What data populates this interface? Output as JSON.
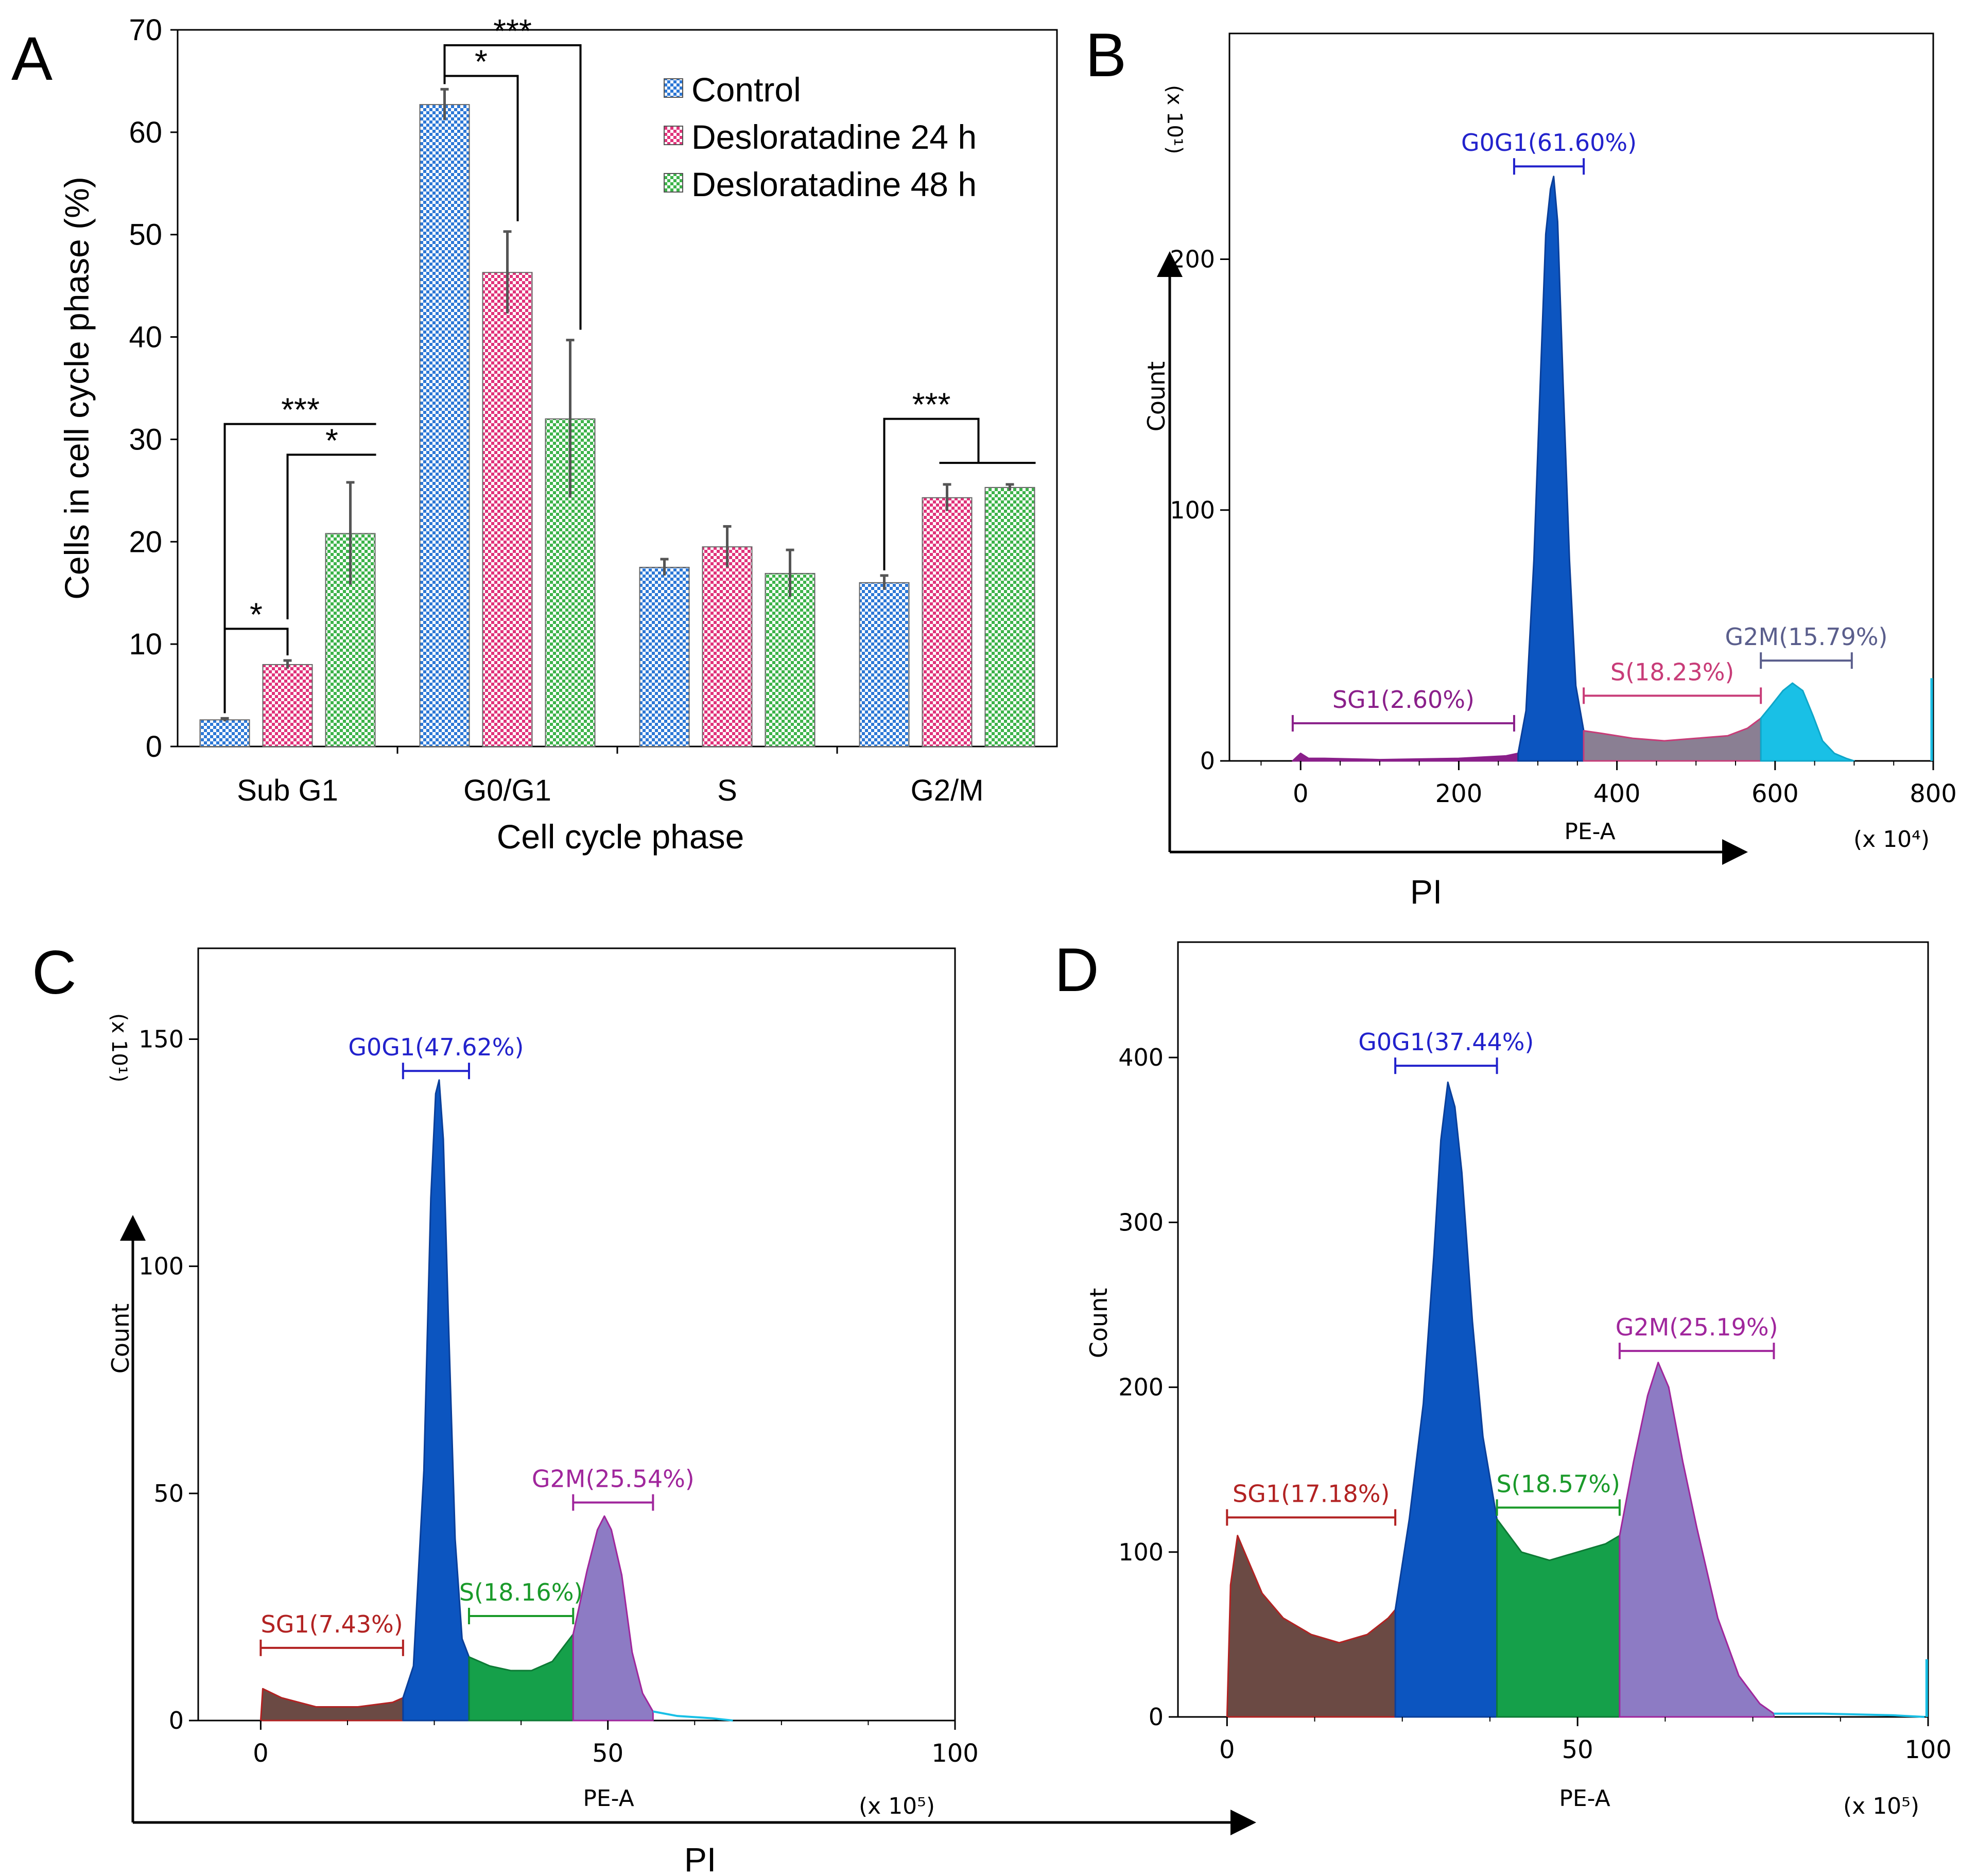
{
  "colors": {
    "control": "#2d78d6",
    "desl24": "#e0337a",
    "desl48": "#3db34a",
    "g0g1_fill": "#0c55c0",
    "sub_fill": "#6b4a44",
    "s_fill_b": "#8a7f93",
    "s_fill_green": "#15a04a",
    "g2m_fill": "#8d7bc4",
    "cyan": "#19c0e6",
    "label_blue": "#2222cc",
    "label_purple": "#8a1f8a",
    "label_pink": "#c83c78",
    "label_slate": "#5a5e8c",
    "label_red": "#b22222",
    "label_green": "#1a9a2a",
    "label_magenta": "#a0269c"
  },
  "chart_data": [
    {
      "id": "A",
      "type": "bar",
      "panel_label": "A",
      "categories": [
        "Sub G1",
        "G0/G1",
        "S",
        "G2/M"
      ],
      "series": [
        {
          "name": "Control",
          "values": [
            2.6,
            62.7,
            17.5,
            16.0
          ],
          "errors": [
            0.15,
            1.5,
            0.8,
            0.7
          ]
        },
        {
          "name": "Desloratadine 24 h",
          "values": [
            8.0,
            46.3,
            19.5,
            24.3
          ],
          "errors": [
            0.4,
            4.0,
            2.0,
            1.3
          ]
        },
        {
          "name": "Desloratadine 48 h",
          "values": [
            20.8,
            32.0,
            16.9,
            25.3
          ],
          "errors": [
            5.0,
            7.7,
            2.3,
            0.3
          ]
        }
      ],
      "xlabel": "Cell cycle phase",
      "ylabel": "Cells in cell cycle phase (%)",
      "ylim": [
        0,
        70
      ],
      "yticks": [
        0,
        10,
        20,
        30,
        40,
        50,
        60,
        70
      ],
      "legend": "top-right",
      "significance": [
        {
          "label": "*",
          "from": "Sub G1 / Control",
          "to": "Sub G1 / Desloratadine 24 h"
        },
        {
          "label": "***",
          "from": "Sub G1 / Control",
          "to": "Sub G1 / Desloratadine 48 h"
        },
        {
          "label": "*",
          "from": "Sub G1 / Desloratadine 24 h",
          "to": "Sub G1 / Desloratadine 48 h"
        },
        {
          "label": "*",
          "from": "G0/G1 / Control",
          "to": "G0/G1 / Desloratadine 24 h"
        },
        {
          "label": "***",
          "from": "G0/G1 / Control",
          "to": "G0/G1 / Desloratadine 48 h"
        },
        {
          "label": "***",
          "from": "G2/M / Control",
          "to": "G2/M / Desloratadine 24 h + 48 h"
        }
      ]
    },
    {
      "id": "B",
      "type": "area",
      "panel_label": "B",
      "xlabel": "PE-A",
      "ylabel": "Count",
      "x_multiplier": "(x 10⁴)",
      "y_multiplier": "(x 10¹)",
      "xlim": [
        -90,
        800
      ],
      "ylim": [
        0,
        290
      ],
      "xticks": [
        0,
        200,
        400,
        600,
        800
      ],
      "yticks": [
        0,
        100,
        200
      ],
      "gates": [
        {
          "label": "SG1(2.60%)",
          "x": [
            -10,
            270
          ],
          "level": 15,
          "color_key": "label_purple"
        },
        {
          "label": "G0G1(61.60%)",
          "x": [
            270,
            358
          ],
          "level": 237,
          "color_key": "label_blue"
        },
        {
          "label": "S(18.23%)",
          "x": [
            358,
            582
          ],
          "level": 26,
          "color_key": "label_pink"
        },
        {
          "label": "G2M(15.79%)",
          "x": [
            582,
            697
          ],
          "level": 40,
          "color_key": "label_slate"
        }
      ],
      "histogram": {
        "sub": [
          [
            -10,
            0
          ],
          [
            0,
            3
          ],
          [
            10,
            1
          ],
          [
            30,
            1
          ],
          [
            100,
            0.5
          ],
          [
            200,
            1
          ],
          [
            260,
            2
          ],
          [
            275,
            3
          ]
        ],
        "g0g1": [
          [
            275,
            3
          ],
          [
            285,
            20
          ],
          [
            295,
            80
          ],
          [
            303,
            150
          ],
          [
            310,
            210
          ],
          [
            316,
            228
          ],
          [
            320,
            233
          ],
          [
            325,
            215
          ],
          [
            332,
            150
          ],
          [
            340,
            80
          ],
          [
            348,
            30
          ],
          [
            358,
            12
          ]
        ],
        "s": [
          [
            358,
            12
          ],
          [
            380,
            11
          ],
          [
            420,
            9
          ],
          [
            460,
            8
          ],
          [
            500,
            9
          ],
          [
            540,
            10
          ],
          [
            565,
            13
          ],
          [
            582,
            17
          ]
        ],
        "g2m": [
          [
            582,
            17
          ],
          [
            595,
            22
          ],
          [
            610,
            28
          ],
          [
            622,
            31
          ],
          [
            635,
            28
          ],
          [
            648,
            18
          ],
          [
            660,
            8
          ],
          [
            675,
            3
          ],
          [
            690,
            1
          ],
          [
            700,
            0
          ]
        ],
        "spike_x": 798,
        "spike_y": 33
      }
    },
    {
      "id": "C",
      "type": "area",
      "panel_label": "C",
      "xlabel": "PE-A",
      "ylabel": "Count",
      "x_multiplier": "(x 10⁵)",
      "y_multiplier": "(x 10¹)",
      "xlim": [
        -9,
        100
      ],
      "ylim": [
        0,
        170
      ],
      "xticks": [
        0,
        50,
        100
      ],
      "yticks": [
        0,
        50,
        100,
        150
      ],
      "gates": [
        {
          "label": "SG1(7.43%)",
          "x": [
            0,
            20.5
          ],
          "level": 16,
          "color_key": "label_red"
        },
        {
          "label": "G0G1(47.62%)",
          "x": [
            20.5,
            30
          ],
          "level": 143,
          "color_key": "label_blue"
        },
        {
          "label": "S(18.16%)",
          "x": [
            30,
            45
          ],
          "level": 23,
          "color_key": "label_green"
        },
        {
          "label": "G2M(25.54%)",
          "x": [
            45,
            56.5
          ],
          "level": 48,
          "color_key": "label_magenta"
        }
      ],
      "histogram": {
        "sub": [
          [
            0,
            0
          ],
          [
            0.3,
            7
          ],
          [
            3,
            5
          ],
          [
            8,
            3
          ],
          [
            14,
            3
          ],
          [
            19,
            4
          ],
          [
            20.5,
            5
          ]
        ],
        "g0g1": [
          [
            20.5,
            5
          ],
          [
            22,
            12
          ],
          [
            23.5,
            55
          ],
          [
            24.5,
            115
          ],
          [
            25.2,
            138
          ],
          [
            25.7,
            141
          ],
          [
            26.3,
            128
          ],
          [
            27,
            90
          ],
          [
            28,
            40
          ],
          [
            29,
            18
          ],
          [
            30,
            14
          ]
        ],
        "s": [
          [
            30,
            14
          ],
          [
            33,
            12
          ],
          [
            36,
            11
          ],
          [
            39,
            11
          ],
          [
            42,
            13
          ],
          [
            45,
            19
          ]
        ],
        "g2m": [
          [
            45,
            19
          ],
          [
            47,
            33
          ],
          [
            48.5,
            42
          ],
          [
            49.5,
            45
          ],
          [
            50.5,
            42
          ],
          [
            52,
            32
          ],
          [
            53.5,
            15
          ],
          [
            55,
            6
          ],
          [
            56.5,
            2
          ]
        ],
        "tail": [
          [
            56.5,
            2
          ],
          [
            60,
            1
          ],
          [
            65,
            0.5
          ],
          [
            68,
            0
          ]
        ]
      }
    },
    {
      "id": "D",
      "type": "area",
      "panel_label": "D",
      "xlabel": "PE-A",
      "ylabel": "Count",
      "x_multiplier": "(x 10⁵)",
      "xlim": [
        -7,
        100
      ],
      "ylim": [
        0,
        470
      ],
      "xticks": [
        0,
        50,
        100
      ],
      "yticks": [
        0,
        100,
        200,
        300,
        400
      ],
      "gates": [
        {
          "label": "SG1(17.18%)",
          "x": [
            0,
            24
          ],
          "level": 121,
          "color_key": "label_red"
        },
        {
          "label": "G0G1(37.44%)",
          "x": [
            24,
            38.5
          ],
          "level": 395,
          "color_key": "label_blue"
        },
        {
          "label": "S(18.57%)",
          "x": [
            38.5,
            56
          ],
          "level": 127,
          "color_key": "label_green"
        },
        {
          "label": "G2M(25.19%)",
          "x": [
            56,
            78
          ],
          "level": 222,
          "color_key": "label_magenta"
        }
      ],
      "histogram": {
        "sub": [
          [
            0,
            0
          ],
          [
            0.5,
            80
          ],
          [
            1.5,
            110
          ],
          [
            3,
            95
          ],
          [
            5,
            75
          ],
          [
            8,
            60
          ],
          [
            12,
            50
          ],
          [
            16,
            45
          ],
          [
            20,
            50
          ],
          [
            23,
            60
          ],
          [
            24,
            65
          ]
        ],
        "g0g1": [
          [
            24,
            65
          ],
          [
            26,
            120
          ],
          [
            28,
            190
          ],
          [
            29.5,
            280
          ],
          [
            30.5,
            350
          ],
          [
            31.5,
            385
          ],
          [
            32.5,
            370
          ],
          [
            33.5,
            330
          ],
          [
            35,
            240
          ],
          [
            36.5,
            170
          ],
          [
            38.5,
            120
          ]
        ],
        "s": [
          [
            38.5,
            120
          ],
          [
            42,
            100
          ],
          [
            46,
            95
          ],
          [
            50,
            100
          ],
          [
            54,
            105
          ],
          [
            56,
            110
          ]
        ],
        "g2m": [
          [
            56,
            110
          ],
          [
            58,
            155
          ],
          [
            60,
            195
          ],
          [
            61.5,
            215
          ],
          [
            63,
            200
          ],
          [
            65,
            155
          ],
          [
            67,
            115
          ],
          [
            70,
            60
          ],
          [
            73,
            25
          ],
          [
            76,
            8
          ],
          [
            78,
            2
          ]
        ],
        "tail": [
          [
            78,
            2
          ],
          [
            85,
            2
          ],
          [
            95,
            1
          ],
          [
            99.5,
            0
          ]
        ],
        "spike_x": 99.8,
        "spike_y": 35
      }
    }
  ],
  "shared_axis": {
    "top": {
      "label": "PI"
    },
    "bottom": {
      "label": "PI"
    }
  }
}
